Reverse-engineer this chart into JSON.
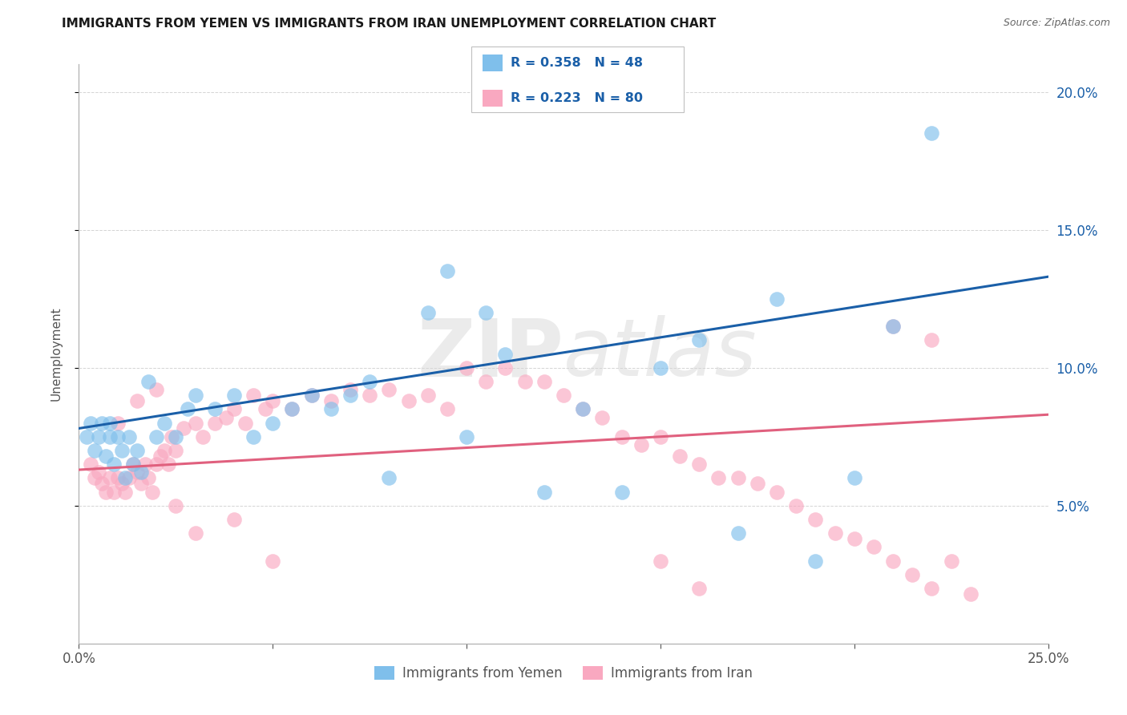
{
  "title": "IMMIGRANTS FROM YEMEN VS IMMIGRANTS FROM IRAN UNEMPLOYMENT CORRELATION CHART",
  "source_text": "Source: ZipAtlas.com",
  "ylabel": "Unemployment",
  "color_yemen": "#7fbfeb",
  "color_iran": "#f9a8c0",
  "line_color_yemen": "#1a5fa8",
  "line_color_iran": "#e0607e",
  "watermark": "ZIPatlas",
  "background_color": "#ffffff",
  "grid_color": "#d0d0d0",
  "xmin": 0.0,
  "xmax": 0.25,
  "ymin": 0.0,
  "ymax": 0.21,
  "yticks": [
    0.05,
    0.1,
    0.15,
    0.2
  ],
  "ytick_labels": [
    "5.0%",
    "10.0%",
    "15.0%",
    "20.0%"
  ],
  "legend_R_yemen": "R = 0.358",
  "legend_N_yemen": "N = 48",
  "legend_R_iran": "R = 0.223",
  "legend_N_iran": "N = 80",
  "yemen_line_x0": 0.0,
  "yemen_line_y0": 0.078,
  "yemen_line_x1": 0.25,
  "yemen_line_y1": 0.133,
  "iran_line_x0": 0.0,
  "iran_line_y0": 0.063,
  "iran_line_x1": 0.25,
  "iran_line_y1": 0.083,
  "yemen_x": [
    0.002,
    0.003,
    0.004,
    0.005,
    0.006,
    0.007,
    0.008,
    0.008,
    0.009,
    0.01,
    0.011,
    0.012,
    0.013,
    0.014,
    0.015,
    0.016,
    0.018,
    0.02,
    0.022,
    0.025,
    0.028,
    0.03,
    0.035,
    0.04,
    0.045,
    0.05,
    0.055,
    0.06,
    0.065,
    0.07,
    0.075,
    0.08,
    0.09,
    0.095,
    0.1,
    0.105,
    0.11,
    0.12,
    0.13,
    0.14,
    0.15,
    0.16,
    0.17,
    0.18,
    0.19,
    0.2,
    0.21,
    0.22
  ],
  "yemen_y": [
    0.075,
    0.08,
    0.07,
    0.075,
    0.08,
    0.068,
    0.08,
    0.075,
    0.065,
    0.075,
    0.07,
    0.06,
    0.075,
    0.065,
    0.07,
    0.062,
    0.095,
    0.075,
    0.08,
    0.075,
    0.085,
    0.09,
    0.085,
    0.09,
    0.075,
    0.08,
    0.085,
    0.09,
    0.085,
    0.09,
    0.095,
    0.06,
    0.12,
    0.135,
    0.075,
    0.12,
    0.105,
    0.055,
    0.085,
    0.055,
    0.1,
    0.11,
    0.04,
    0.125,
    0.03,
    0.06,
    0.115,
    0.185
  ],
  "iran_x": [
    0.003,
    0.004,
    0.005,
    0.006,
    0.007,
    0.008,
    0.009,
    0.01,
    0.011,
    0.012,
    0.013,
    0.014,
    0.015,
    0.016,
    0.017,
    0.018,
    0.019,
    0.02,
    0.021,
    0.022,
    0.023,
    0.024,
    0.025,
    0.027,
    0.03,
    0.032,
    0.035,
    0.038,
    0.04,
    0.043,
    0.045,
    0.048,
    0.05,
    0.055,
    0.06,
    0.065,
    0.07,
    0.075,
    0.08,
    0.085,
    0.09,
    0.095,
    0.1,
    0.105,
    0.11,
    0.115,
    0.12,
    0.125,
    0.13,
    0.135,
    0.14,
    0.145,
    0.15,
    0.155,
    0.16,
    0.165,
    0.17,
    0.175,
    0.18,
    0.185,
    0.19,
    0.195,
    0.2,
    0.205,
    0.21,
    0.215,
    0.22,
    0.225,
    0.23,
    0.01,
    0.015,
    0.02,
    0.025,
    0.03,
    0.04,
    0.05,
    0.15,
    0.16,
    0.21,
    0.22
  ],
  "iran_y": [
    0.065,
    0.06,
    0.062,
    0.058,
    0.055,
    0.06,
    0.055,
    0.06,
    0.058,
    0.055,
    0.06,
    0.065,
    0.062,
    0.058,
    0.065,
    0.06,
    0.055,
    0.065,
    0.068,
    0.07,
    0.065,
    0.075,
    0.07,
    0.078,
    0.08,
    0.075,
    0.08,
    0.082,
    0.085,
    0.08,
    0.09,
    0.085,
    0.088,
    0.085,
    0.09,
    0.088,
    0.092,
    0.09,
    0.092,
    0.088,
    0.09,
    0.085,
    0.1,
    0.095,
    0.1,
    0.095,
    0.095,
    0.09,
    0.085,
    0.082,
    0.075,
    0.072,
    0.075,
    0.068,
    0.065,
    0.06,
    0.06,
    0.058,
    0.055,
    0.05,
    0.045,
    0.04,
    0.038,
    0.035,
    0.03,
    0.025,
    0.02,
    0.03,
    0.018,
    0.08,
    0.088,
    0.092,
    0.05,
    0.04,
    0.045,
    0.03,
    0.03,
    0.02,
    0.115,
    0.11
  ]
}
